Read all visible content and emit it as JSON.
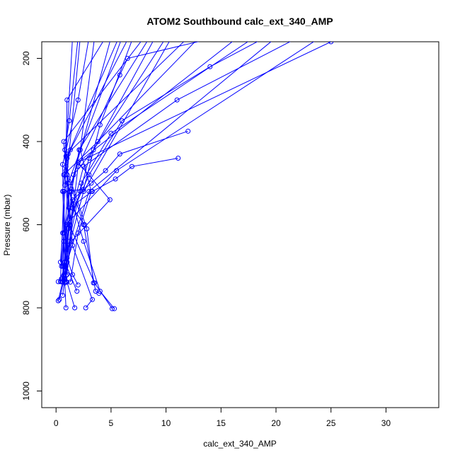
{
  "chart_data": {
    "type": "line",
    "title": "ATOM2 Southbound calc_ext_340_AMP",
    "xlabel": "calc_ext_340_AMP",
    "ylabel": "Pressure (mbar)",
    "xlim": [
      -1.3,
      34.8
    ],
    "ylim": [
      1040,
      160
    ],
    "y_reversed": true,
    "x_ticks": [
      0,
      5,
      10,
      15,
      20,
      25,
      30
    ],
    "y_ticks": [
      200,
      400,
      600,
      800,
      1000
    ],
    "grid": false,
    "legend": "none",
    "series_color": "#0000ff",
    "marker": "open-circle",
    "profiles": [
      {
        "x": [
          0.2,
          0.6,
          1.0,
          3.0,
          20.0
        ],
        "y": [
          783,
          737,
          690,
          520,
          150
        ]
      },
      {
        "x": [
          0.3,
          0.7,
          0.9,
          5.5,
          24.0
        ],
        "y": [
          780,
          735,
          600,
          470,
          150
        ]
      },
      {
        "x": [
          0.5,
          0.8,
          1.2,
          2.0,
          25.0
        ],
        "y": [
          737,
          700,
          520,
          450,
          160
        ]
      },
      {
        "x": [
          0.9,
          0.8,
          0.6,
          1.1,
          6.0
        ],
        "y": [
          800,
          740,
          700,
          500,
          150
        ]
      },
      {
        "x": [
          1.7,
          1.0,
          0.8,
          2.5,
          10.5
        ],
        "y": [
          800,
          738,
          690,
          520,
          150
        ]
      },
      {
        "x": [
          2.7,
          3.3,
          1.5,
          1.0,
          2.2
        ],
        "y": [
          800,
          780,
          650,
          480,
          150
        ]
      },
      {
        "x": [
          5.1,
          3.5,
          1.2,
          0.8,
          1.5
        ],
        "y": [
          802,
          740,
          600,
          480,
          150
        ]
      },
      {
        "x": [
          5.3,
          4.0,
          2.5,
          1.2,
          5.0
        ],
        "y": [
          802,
          760,
          640,
          520,
          150
        ]
      },
      {
        "x": [
          3.9,
          3.6,
          2.5,
          0.9,
          0.7,
          8.0
        ],
        "y": [
          765,
          760,
          600,
          470,
          400,
          150
        ]
      },
      {
        "x": [
          2.0,
          1.5,
          1.0,
          0.6,
          1.0,
          12.0
        ],
        "y": [
          745,
          720,
          680,
          520,
          430,
          150
        ]
      },
      {
        "x": [
          11.1,
          6.9,
          5.4,
          3.3,
          1.2,
          0.7,
          0.5
        ],
        "y": [
          440,
          460,
          490,
          520,
          560,
          620,
          700
        ]
      },
      {
        "x": [
          12.0,
          5.8,
          4.5,
          3.2,
          1.5,
          0.6,
          0.4
        ],
        "y": [
          375,
          430,
          470,
          500,
          540,
          620,
          690
        ]
      },
      {
        "x": [
          0.6,
          1.0,
          3.0,
          6.0,
          14.0,
          19.0
        ],
        "y": [
          737,
          600,
          480,
          350,
          220,
          150
        ]
      },
      {
        "x": [
          0.8,
          1.4,
          4.9,
          2.0,
          16.5
        ],
        "y": [
          737,
          640,
          540,
          450,
          150
        ]
      },
      {
        "x": [
          0.4,
          0.7,
          2.5,
          4.0,
          7.0
        ],
        "y": [
          737,
          520,
          515,
          360,
          150
        ]
      },
      {
        "x": [
          0.9,
          1.1,
          2.2,
          3.0,
          9.0
        ],
        "y": [
          737,
          610,
          520,
          440,
          150
        ]
      },
      {
        "x": [
          1.3,
          2.0,
          3.2,
          2.2,
          3.5
        ],
        "y": [
          738,
          620,
          520,
          420,
          150
        ]
      },
      {
        "x": [
          0.6,
          0.8,
          1.0,
          1.3,
          6.6
        ],
        "y": [
          737,
          505,
          440,
          420,
          150
        ]
      },
      {
        "x": [
          0.7,
          1.5,
          2.5,
          11.0,
          22.0
        ],
        "y": [
          700,
          560,
          460,
          300,
          150
        ]
      },
      {
        "x": [
          1.0,
          1.6,
          0.7,
          3.8,
          13.0
        ],
        "y": [
          720,
          550,
          480,
          400,
          150
        ]
      },
      {
        "x": [
          0.5,
          1.2,
          2.3,
          5.0,
          18.0
        ],
        "y": [
          730,
          640,
          500,
          380,
          150
        ]
      },
      {
        "x": [
          0.9,
          0.7,
          0.6,
          2.0,
          3.0
        ],
        "y": [
          722,
          640,
          455,
          300,
          150
        ]
      },
      {
        "x": [
          0.8,
          1.2,
          0.9,
          1.0,
          4.5
        ],
        "y": [
          729,
          600,
          435,
          300,
          150
        ]
      },
      {
        "x": [
          2.6,
          1.5,
          1.0,
          1.1,
          5.7
        ],
        "y": [
          600,
          560,
          480,
          430,
          150
        ]
      },
      {
        "x": [
          0.2,
          0.9,
          1.4,
          2.1,
          8.5
        ],
        "y": [
          737,
          700,
          520,
          420,
          150
        ]
      },
      {
        "x": [
          1.9,
          0.8,
          1.6,
          3.4,
          10.0
        ],
        "y": [
          760,
          690,
          480,
          420,
          150
        ]
      },
      {
        "x": [
          0.6,
          1.0,
          2.0,
          5.8,
          6.5,
          14.5
        ],
        "y": [
          770,
          690,
          460,
          240,
          200,
          150
        ]
      },
      {
        "x": [
          3.4,
          2.8,
          0.9,
          0.8,
          1.2,
          2.0
        ],
        "y": [
          740,
          610,
          460,
          420,
          350,
          150
        ]
      }
    ]
  }
}
